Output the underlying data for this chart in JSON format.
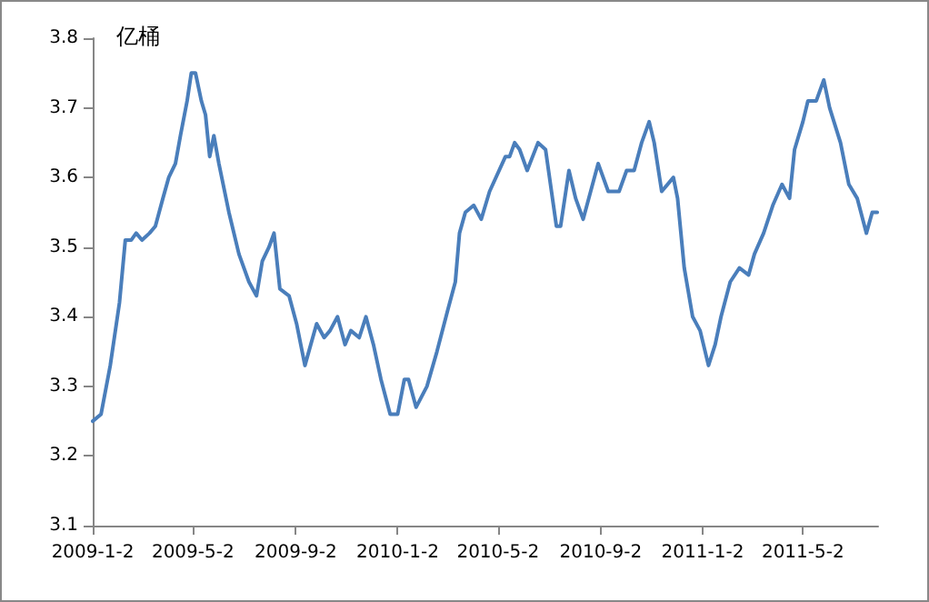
{
  "chart_data": {
    "type": "line",
    "ylabel": "亿桶",
    "xlim": [
      "2009-01-02",
      "2011-07-31"
    ],
    "ylim": [
      3.1,
      3.8
    ],
    "yticks": [
      3.1,
      3.2,
      3.3,
      3.4,
      3.5,
      3.6,
      3.7,
      3.8
    ],
    "xticks": [
      {
        "value": "2009-01-02",
        "label": "2009-1-2"
      },
      {
        "value": "2009-05-02",
        "label": "2009-5-2"
      },
      {
        "value": "2009-09-02",
        "label": "2009-9-2"
      },
      {
        "value": "2010-01-02",
        "label": "2010-1-2"
      },
      {
        "value": "2010-05-02",
        "label": "2010-5-2"
      },
      {
        "value": "2010-09-02",
        "label": "2010-9-2"
      },
      {
        "value": "2011-01-02",
        "label": "2011-1-2"
      },
      {
        "value": "2011-05-02",
        "label": "2011-5-2"
      }
    ],
    "grid": false,
    "marker": "none",
    "line_style": "solid",
    "series": [
      {
        "color": "#4a7ebb",
        "x": [
          "2009-01-02",
          "2009-01-12",
          "2009-01-23",
          "2009-02-03",
          "2009-02-10",
          "2009-02-17",
          "2009-02-23",
          "2009-03-02",
          "2009-03-11",
          "2009-03-18",
          "2009-03-27",
          "2009-04-03",
          "2009-04-11",
          "2009-04-17",
          "2009-04-25",
          "2009-04-30",
          "2009-05-05",
          "2009-05-12",
          "2009-05-17",
          "2009-05-22",
          "2009-05-27",
          "2009-06-02",
          "2009-06-14",
          "2009-06-26",
          "2009-07-08",
          "2009-07-17",
          "2009-07-24",
          "2009-08-01",
          "2009-08-07",
          "2009-08-14",
          "2009-08-25",
          "2009-09-03",
          "2009-09-13",
          "2009-09-20",
          "2009-09-27",
          "2009-10-06",
          "2009-10-13",
          "2009-10-22",
          "2009-10-31",
          "2009-11-07",
          "2009-11-17",
          "2009-11-25",
          "2009-12-04",
          "2009-12-13",
          "2009-12-24",
          "2010-01-02",
          "2010-01-10",
          "2010-01-15",
          "2010-01-24",
          "2010-02-06",
          "2010-02-18",
          "2010-03-03",
          "2010-03-12",
          "2010-03-17",
          "2010-03-24",
          "2010-04-03",
          "2010-04-12",
          "2010-04-22",
          "2010-05-11",
          "2010-05-16",
          "2010-05-22",
          "2010-05-28",
          "2010-06-06",
          "2010-06-19",
          "2010-06-28",
          "2010-07-11",
          "2010-07-16",
          "2010-07-26",
          "2010-08-03",
          "2010-08-12",
          "2010-08-30",
          "2010-09-11",
          "2010-09-18",
          "2010-09-24",
          "2010-10-03",
          "2010-10-12",
          "2010-10-21",
          "2010-10-30",
          "2010-11-05",
          "2010-11-14",
          "2010-11-28",
          "2010-12-03",
          "2010-12-11",
          "2010-12-21",
          "2010-12-30",
          "2011-01-09",
          "2011-01-17",
          "2011-01-24",
          "2011-02-04",
          "2011-02-15",
          "2011-02-26",
          "2011-03-05",
          "2011-03-16",
          "2011-03-27",
          "2011-04-07",
          "2011-04-16",
          "2011-04-22",
          "2011-05-02",
          "2011-05-08",
          "2011-05-18",
          "2011-05-27",
          "2011-06-03",
          "2011-06-16",
          "2011-06-26",
          "2011-07-06",
          "2011-07-17",
          "2011-07-24",
          "2011-07-30"
        ],
        "values": [
          3.25,
          3.26,
          3.33,
          3.42,
          3.51,
          3.51,
          3.52,
          3.51,
          3.52,
          3.53,
          3.57,
          3.6,
          3.62,
          3.66,
          3.71,
          3.75,
          3.75,
          3.71,
          3.69,
          3.63,
          3.66,
          3.62,
          3.55,
          3.49,
          3.45,
          3.43,
          3.48,
          3.5,
          3.52,
          3.44,
          3.43,
          3.39,
          3.33,
          3.36,
          3.39,
          3.37,
          3.38,
          3.4,
          3.36,
          3.38,
          3.37,
          3.4,
          3.36,
          3.31,
          3.26,
          3.26,
          3.31,
          3.31,
          3.27,
          3.3,
          3.35,
          3.41,
          3.45,
          3.52,
          3.55,
          3.56,
          3.54,
          3.58,
          3.63,
          3.63,
          3.65,
          3.64,
          3.61,
          3.65,
          3.64,
          3.53,
          3.53,
          3.61,
          3.57,
          3.54,
          3.62,
          3.58,
          3.58,
          3.58,
          3.61,
          3.61,
          3.65,
          3.68,
          3.65,
          3.58,
          3.6,
          3.57,
          3.47,
          3.4,
          3.38,
          3.33,
          3.36,
          3.4,
          3.45,
          3.47,
          3.46,
          3.49,
          3.52,
          3.56,
          3.59,
          3.57,
          3.64,
          3.68,
          3.71,
          3.71,
          3.74,
          3.7,
          3.65,
          3.59,
          3.57,
          3.52,
          3.55,
          3.55
        ]
      }
    ]
  }
}
